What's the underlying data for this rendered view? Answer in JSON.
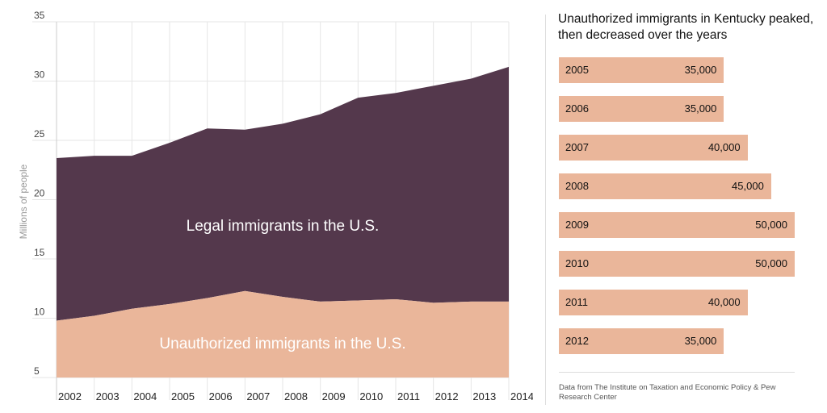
{
  "chart_data": [
    {
      "type": "area",
      "stacked": true,
      "x": [
        2002,
        2003,
        2004,
        2005,
        2006,
        2007,
        2008,
        2009,
        2010,
        2011,
        2012,
        2013,
        2014
      ],
      "x_tick_labels": [
        "2002",
        "2003",
        "2004",
        "2005",
        "2006",
        "2007",
        "2008",
        "2009",
        "2010",
        "2011",
        "2012",
        "2013",
        "2014"
      ],
      "ylabel": "Millions of people",
      "ylim": [
        5,
        35
      ],
      "y_ticks": [
        5,
        10,
        15,
        20,
        25,
        30,
        35
      ],
      "grid": true,
      "series": [
        {
          "name": "Unauthorized immigrants in the U.S.",
          "color": "#eab69a",
          "values": [
            9.8,
            10.2,
            10.8,
            11.2,
            11.7,
            12.3,
            11.8,
            11.4,
            11.5,
            11.6,
            11.3,
            11.4,
            11.4
          ]
        },
        {
          "name": "Legal immigrants in the U.S.",
          "color": "#54384c",
          "totals": [
            23.5,
            23.7,
            23.7,
            24.8,
            26.0,
            25.9,
            26.4,
            27.2,
            28.6,
            29.0,
            29.6,
            30.2,
            31.2
          ]
        }
      ]
    },
    {
      "type": "bar",
      "orientation": "horizontal",
      "title": "Unauthorized immigrants in Kentucky peaked, then decreased over the years",
      "categories": [
        "2005",
        "2006",
        "2007",
        "2008",
        "2009",
        "2010",
        "2011",
        "2012"
      ],
      "values": [
        35000,
        35000,
        40000,
        45000,
        50000,
        50000,
        40000,
        35000
      ],
      "value_labels": [
        "35,000",
        "35,000",
        "40,000",
        "45,000",
        "50,000",
        "50,000",
        "40,000",
        "35,000"
      ],
      "color": "#eab69a",
      "source": "Data from The Institute on Taxation and Economic Policy & Pew Research Center"
    }
  ]
}
